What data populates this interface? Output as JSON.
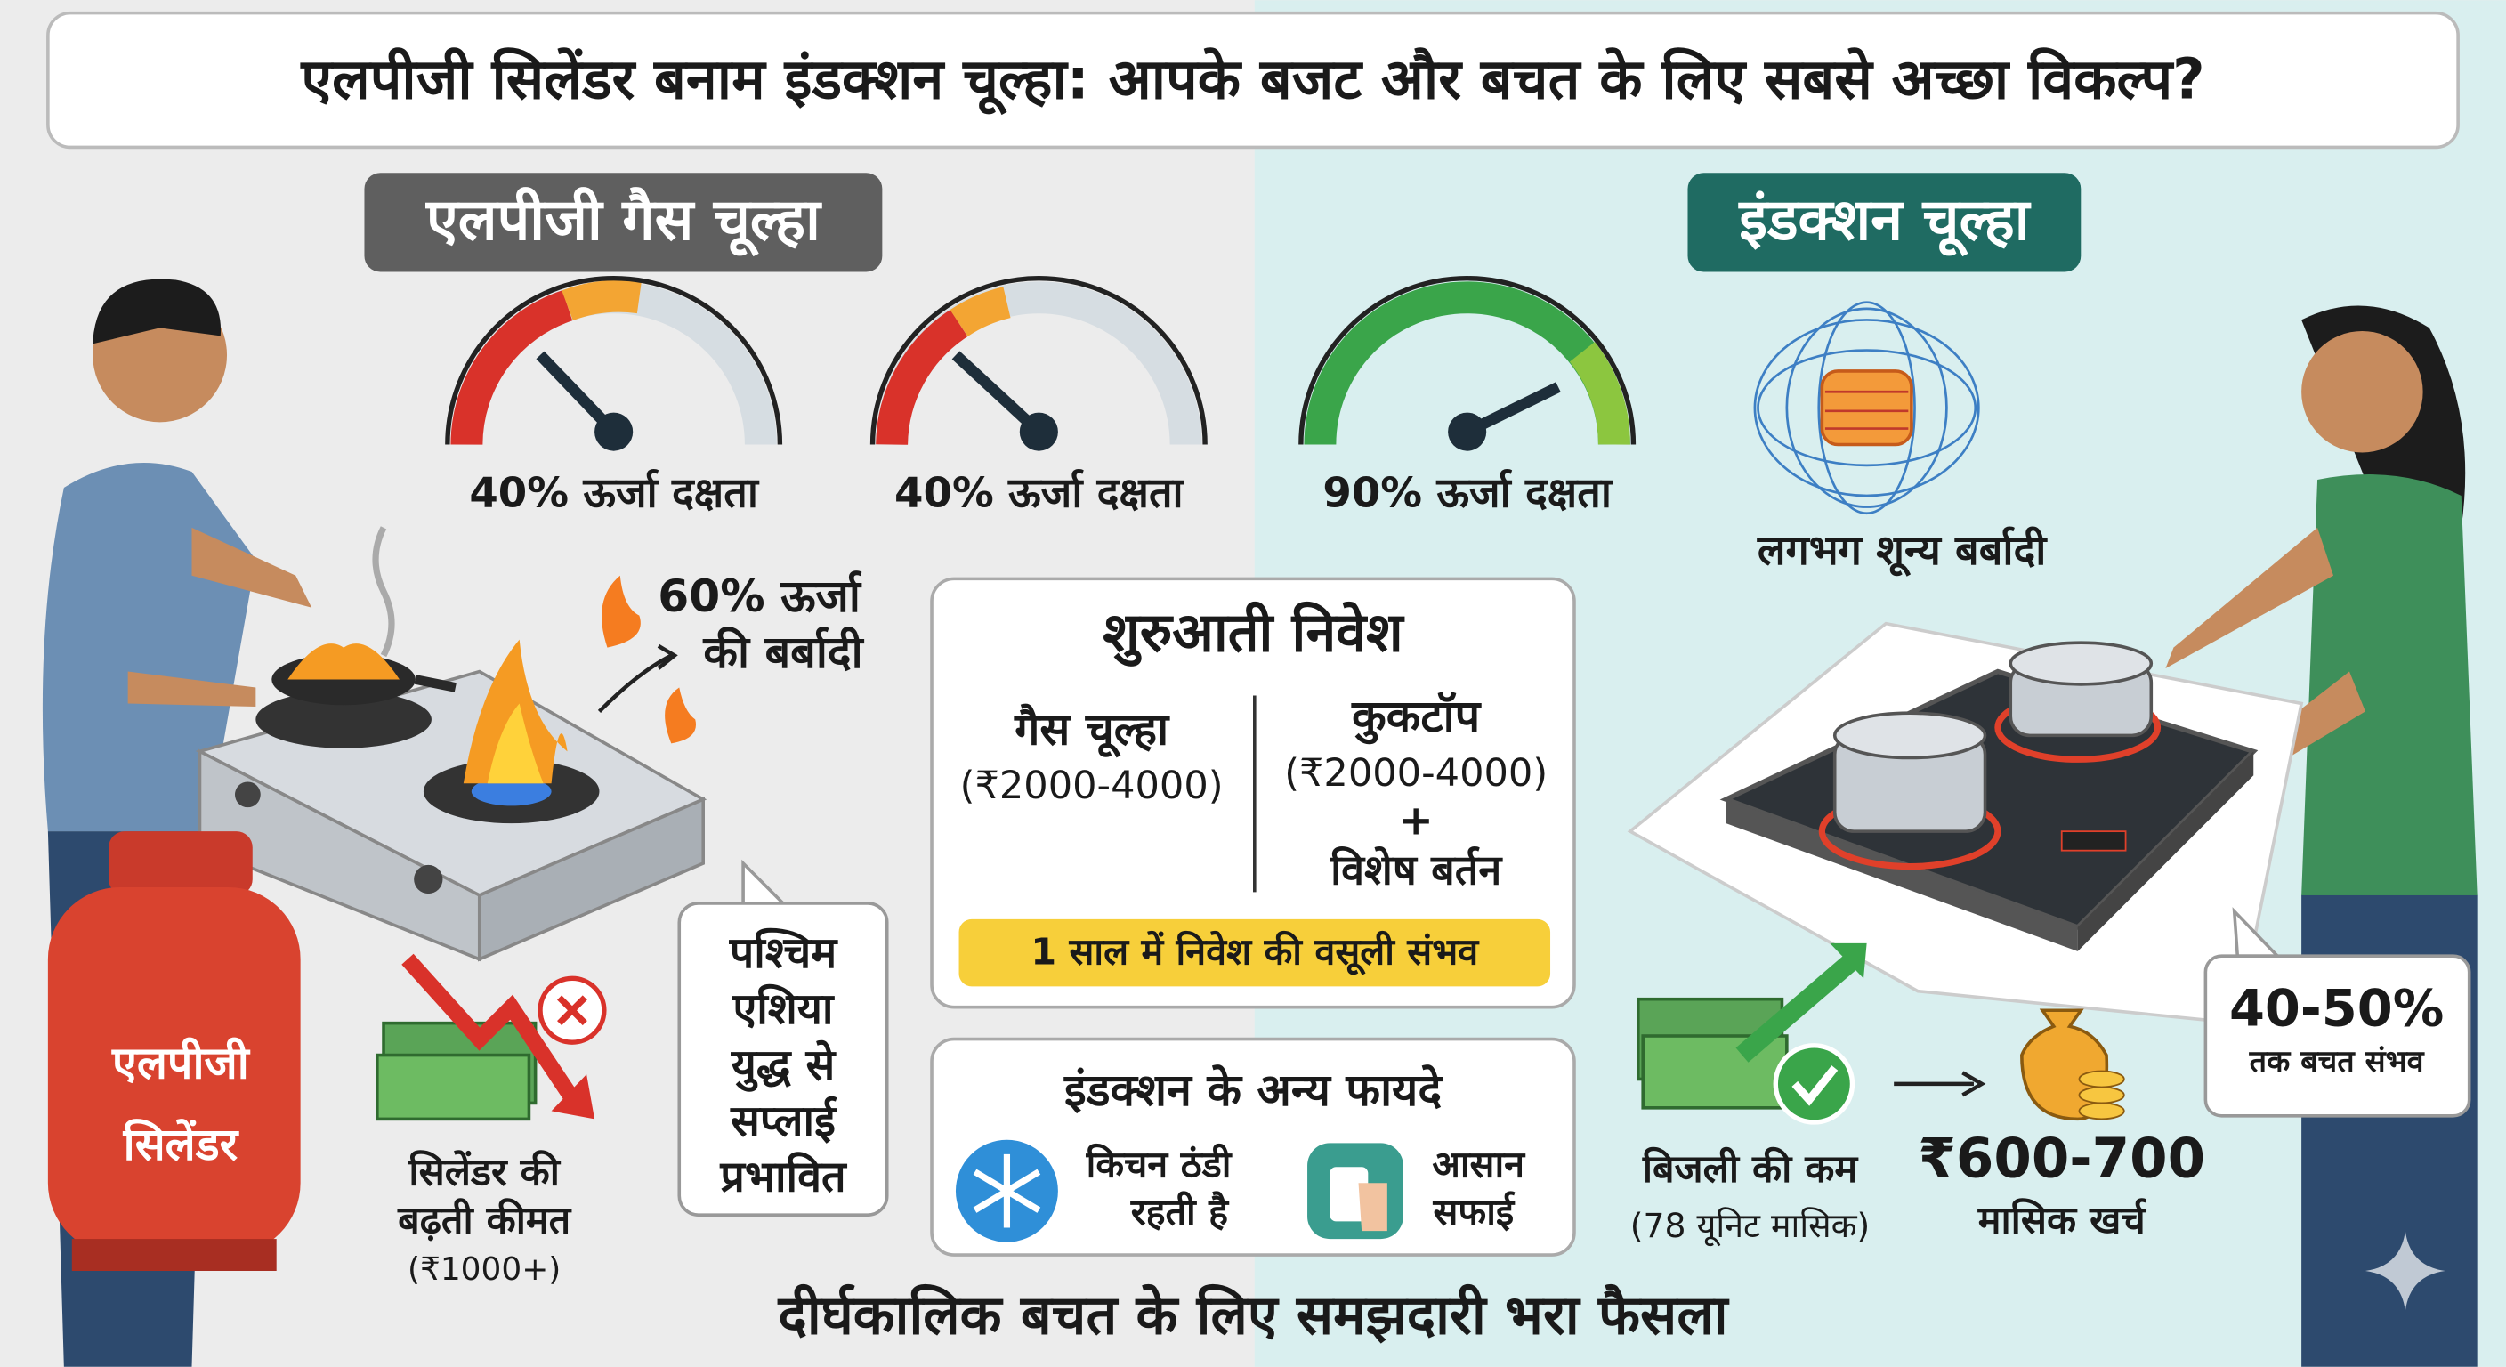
{
  "header": {
    "title": "एलपीजी सिलेंडर बनाम इंडक्शन चूल्हा: आपके बजट और बचत के लिए सबसे अच्छा विकल्प?"
  },
  "lpg": {
    "title": "एलपीजी गैस चूल्हा",
    "gauges": [
      "40% ऊर्जा दक्षता",
      "40% ऊर्जा दक्षता"
    ],
    "waste": [
      "60% ऊर्जा",
      "की बर्बादी"
    ],
    "cylinder": [
      "एलपीजी",
      "सिलेंडर"
    ],
    "price": [
      "सिलेंडर की",
      "बढ़ती कीमत",
      "(₹1000+)"
    ],
    "war": [
      "पश्चिम",
      "एशिया",
      "युद्ध से",
      "सप्लाई",
      "प्रभावित"
    ]
  },
  "induction": {
    "title": "इंडक्शन चूल्हा",
    "gauge": "90% ऊर्जा दक्षता",
    "waste": "लगभग शून्य बर्बादी",
    "bill": [
      "बिजली की कम",
      "(78 यूनिट मासिक)"
    ],
    "cost": [
      "₹600-700",
      "मासिक खर्च"
    ],
    "saving": [
      "40-50%",
      "तक बचत संभव"
    ]
  },
  "investment": {
    "title": "शुरुआती निवेश",
    "gas": [
      "गैस चूल्हा",
      "(₹2000-4000)"
    ],
    "cooktop": [
      "कुकटॉप",
      "(₹2000-4000)",
      "+",
      "विशेष बर्तन"
    ],
    "payback": "1 साल में निवेश की वसूली संभव"
  },
  "benefits": {
    "title": "इंडक्शन के अन्य फायदे",
    "items": [
      [
        "किचन ठंडी",
        "रहती है"
      ],
      [
        "आसान",
        "सफाई"
      ]
    ]
  },
  "footer": "दीर्घकालिक बचत के लिए समझदारी भरा फैसला"
}
